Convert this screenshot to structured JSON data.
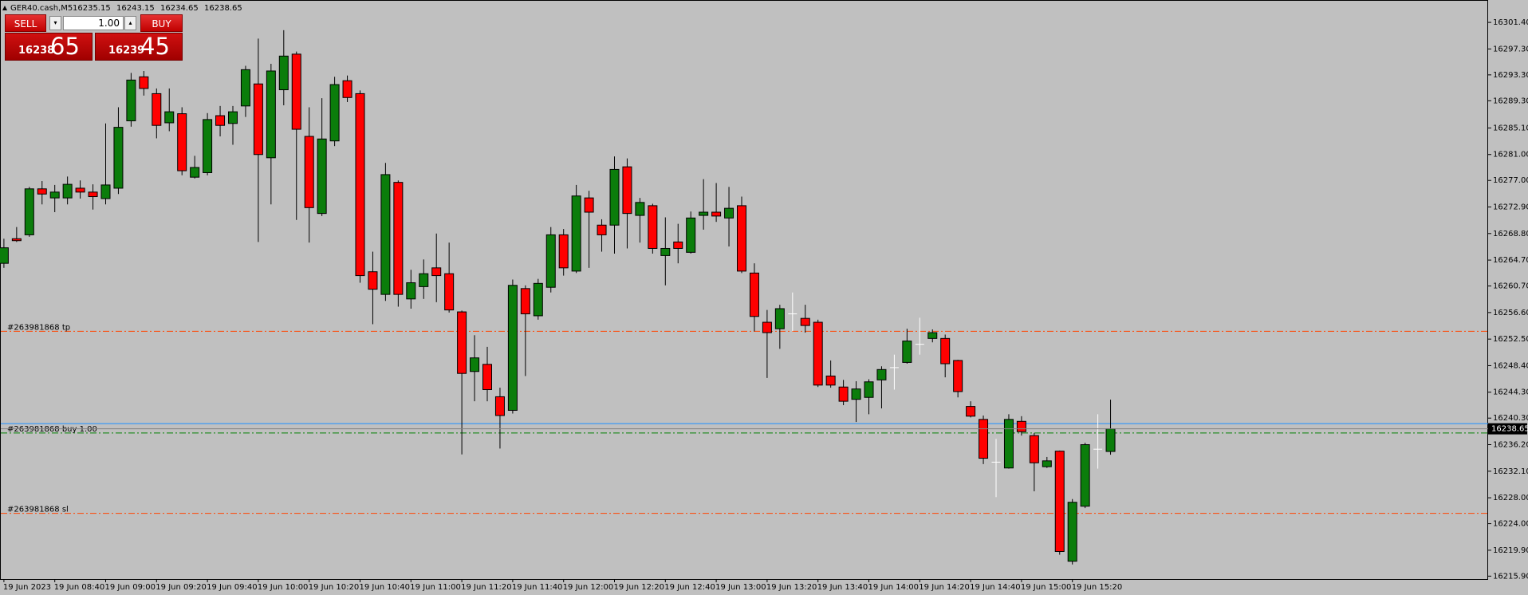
{
  "chart_data": {
    "type": "candlestick",
    "symbol": "GER40.cash,M5",
    "categories": [
      "19 Jun 2023",
      null,
      null,
      null,
      "19 Jun 08:40",
      null,
      null,
      null,
      "19 Jun 09:00",
      null,
      null,
      null,
      "19 Jun 09:20",
      null,
      null,
      null,
      "19 Jun 09:40",
      null,
      null,
      null,
      "19 Jun 10:00",
      null,
      null,
      null,
      "19 Jun 10:20",
      null,
      null,
      null,
      "19 Jun 10:40",
      null,
      null,
      null,
      "19 Jun 11:00",
      null,
      null,
      null,
      "19 Jun 11:20",
      null,
      null,
      null,
      "19 Jun 11:40",
      null,
      null,
      null,
      "19 Jun 12:00",
      null,
      null,
      null,
      "19 Jun 12:20",
      null,
      null,
      null,
      "19 Jun 12:40",
      null,
      null,
      null,
      "19 Jun 13:00",
      null,
      null,
      null,
      "19 Jun 13:20",
      null,
      null,
      null,
      "19 Jun 13:40",
      null,
      null,
      null,
      "19 Jun 14:00",
      null,
      null,
      null,
      "19 Jun 14:20",
      null,
      null,
      null,
      "19 Jun 14:40",
      null,
      null,
      null,
      "19 Jun 15:00",
      null,
      null,
      null,
      "19 Jun 15:20",
      null,
      null,
      null
    ],
    "open": [
      16264.2,
      16268.0,
      16268.6,
      16275.7,
      16274.3,
      16274.3,
      16275.8,
      16275.2,
      16274.2,
      16275.8,
      16286.2,
      16293.0,
      16290.4,
      16285.9,
      16287.3,
      16277.5,
      16278.2,
      16287.0,
      16285.8,
      16288.5,
      16291.9,
      16280.5,
      16291.0,
      16296.5,
      16283.8,
      16271.9,
      16283.1,
      16292.4,
      16290.4,
      16262.9,
      16259.4,
      16276.7,
      16258.7,
      16260.6,
      16263.5,
      16262.6,
      16256.7,
      16247.5,
      16248.6,
      16243.6,
      16241.5,
      16260.3,
      16256.1,
      16260.5,
      16268.6,
      16263.0,
      16274.3,
      16270.1,
      16270.1,
      16279.1,
      16271.6,
      16273.1,
      16265.4,
      16267.5,
      16265.9,
      16271.6,
      16272.1,
      16271.2,
      16273.1,
      16262.7,
      16255.1,
      16254.1,
      16256.4,
      16255.7,
      16255.1,
      16246.8,
      16245.1,
      16243.2,
      16243.5,
      16246.2,
      16248.1,
      16248.9,
      16251.7,
      16252.6,
      16252.6,
      16249.2,
      16242.1,
      16240.1,
      16233.5,
      16232.6,
      16239.8,
      16237.6,
      16232.8,
      16235.2,
      16218.2,
      16226.7,
      16235.5,
      16235.15
    ],
    "high": [
      16268.0,
      16269.8,
      16276.0,
      16276.9,
      16276.3,
      16277.6,
      16277.0,
      16276.4,
      16285.8,
      16288.3,
      16293.6,
      16293.9,
      16291.2,
      16291.2,
      16288.3,
      16280.8,
      16287.4,
      16288.5,
      16288.5,
      16294.7,
      16298.9,
      16295.0,
      16300.2,
      16296.9,
      16288.3,
      16289.7,
      16293.0,
      16293.2,
      16290.9,
      16266.0,
      16279.7,
      16277.0,
      16263.2,
      16264.8,
      16268.8,
      16267.4,
      16256.9,
      16253.1,
      16251.3,
      16245.0,
      16261.7,
      16260.8,
      16261.8,
      16269.8,
      16269.5,
      16276.3,
      16275.4,
      16271.0,
      16280.7,
      16280.4,
      16274.3,
      16273.4,
      16271.3,
      16270.3,
      16272.2,
      16277.2,
      16276.6,
      16276.0,
      16274.5,
      16264.2,
      16257.0,
      16257.8,
      16259.7,
      16257.8,
      16255.5,
      16249.2,
      16246.2,
      16246.0,
      16246.3,
      16248.3,
      16250.1,
      16254.1,
      16255.8,
      16254.0,
      16253.2,
      16249.3,
      16242.9,
      16240.7,
      16237.1,
      16240.9,
      16240.6,
      16238.0,
      16234.3,
      16235.3,
      16227.8,
      16236.5,
      16240.9,
      16243.15
    ],
    "low": [
      16263.5,
      16267.5,
      16268.3,
      16273.3,
      16272.1,
      16273.3,
      16274.2,
      16272.5,
      16273.3,
      16274.9,
      16285.3,
      16290.1,
      16283.5,
      16284.6,
      16277.8,
      16277.3,
      16277.8,
      16283.8,
      16282.5,
      16286.8,
      16267.5,
      16273.3,
      16288.6,
      16270.9,
      16267.4,
      16271.5,
      16282.3,
      16289.1,
      16261.2,
      16254.8,
      16258.4,
      16257.5,
      16257.2,
      16258.7,
      16258.2,
      16256.6,
      16234.7,
      16242.9,
      16242.9,
      16235.6,
      16241.0,
      16246.8,
      16255.5,
      16259.7,
      16262.3,
      16262.7,
      16263.5,
      16266.0,
      16265.7,
      16266.5,
      16267.4,
      16265.7,
      16260.8,
      16264.2,
      16265.7,
      16269.4,
      16270.6,
      16266.8,
      16262.7,
      16253.7,
      16246.5,
      16251.0,
      16253.7,
      16253.5,
      16245.1,
      16245.0,
      16242.3,
      16239.7,
      16240.9,
      16241.8,
      16244.7,
      16248.7,
      16250.1,
      16252.0,
      16246.6,
      16243.5,
      16240.4,
      16233.2,
      16228.1,
      16232.5,
      16237.6,
      16229.0,
      16232.6,
      16219.2,
      16217.7,
      16226.4,
      16232.5,
      16234.65
    ],
    "close": [
      16266.6,
      16267.7,
      16275.7,
      16274.9,
      16275.2,
      16276.4,
      16275.2,
      16274.5,
      16276.3,
      16285.2,
      16292.5,
      16291.2,
      16285.5,
      16287.6,
      16278.5,
      16279.0,
      16286.4,
      16285.5,
      16287.6,
      16294.1,
      16281.0,
      16293.9,
      16296.2,
      16284.9,
      16272.8,
      16283.4,
      16291.8,
      16289.8,
      16262.3,
      16260.2,
      16277.9,
      16259.4,
      16261.2,
      16262.6,
      16262.3,
      16257.0,
      16247.2,
      16249.6,
      16244.7,
      16240.7,
      16260.8,
      16256.4,
      16261.1,
      16268.6,
      16263.5,
      16274.6,
      16272.1,
      16268.6,
      16278.7,
      16271.9,
      16273.6,
      16266.5,
      16266.5,
      16266.5,
      16271.2,
      16272.1,
      16271.5,
      16272.7,
      16263.0,
      16256.0,
      16253.5,
      16257.2,
      16256.4,
      16254.6,
      16245.4,
      16245.4,
      16242.9,
      16244.8,
      16245.9,
      16247.8,
      16248.1,
      16252.2,
      16251.7,
      16253.5,
      16248.7,
      16244.4,
      16240.6,
      16234.1,
      16233.5,
      16240.1,
      16238.2,
      16233.4,
      16233.7,
      16219.7,
      16227.3,
      16236.2,
      16235.5,
      16238.65
    ],
    "up_color": "#0b7d0b",
    "down_color": "#ff0000",
    "doji_color": "#ffffff",
    "ylim": [
      16215.45,
      16304.86
    ],
    "yticks": [
      {
        "value": 16301.4,
        "label": "16301.40"
      },
      {
        "value": 16297.3,
        "label": "16297.30"
      },
      {
        "value": 16293.3,
        "label": "16293.30"
      },
      {
        "value": 16289.3,
        "label": "16289.30"
      },
      {
        "value": 16285.1,
        "label": "16285.10"
      },
      {
        "value": 16281,
        "label": "16281.00"
      },
      {
        "value": 16277,
        "label": "16277.00"
      },
      {
        "value": 16272.9,
        "label": "16272.90"
      },
      {
        "value": 16268.8,
        "label": "16268.80"
      },
      {
        "value": 16264.7,
        "label": "16264.70"
      },
      {
        "value": 16260.7,
        "label": "16260.70"
      },
      {
        "value": 16256.6,
        "label": "16256.60"
      },
      {
        "value": 16252.5,
        "label": "16252.50"
      },
      {
        "value": 16248.4,
        "label": "16248.40"
      },
      {
        "value": 16244.3,
        "label": "16244.30"
      },
      {
        "value": 16240.3,
        "label": "16240.30"
      },
      {
        "value": 16236.2,
        "label": "16236.20"
      },
      {
        "value": 16232.1,
        "label": "16232.10"
      },
      {
        "value": 16228,
        "label": "16228.00"
      },
      {
        "value": 16224,
        "label": "16224.00"
      },
      {
        "value": 16219.9,
        "label": "16219.90"
      },
      {
        "value": 16215.9,
        "label": "16215.90"
      }
    ],
    "levels": [
      {
        "label": "#263981868 tp",
        "value": 16253.7,
        "color": "#ff4500"
      },
      {
        "label": "#263981868 buy 1.00",
        "value": 16238.0,
        "color": "#008000"
      },
      {
        "label": "#263981868 sl",
        "value": 16225.6,
        "color": "#ff4500"
      }
    ],
    "ask_line": {
      "value": 16239.45,
      "color": "#1e90ff"
    },
    "bid_color": "#808080",
    "panel": {
      "sell": "SELL",
      "buy": "BUY",
      "volume": "1.00",
      "bid_big": "16238",
      "bid_small": "65",
      "ask_big": "16239",
      "ask_small": "45"
    }
  }
}
